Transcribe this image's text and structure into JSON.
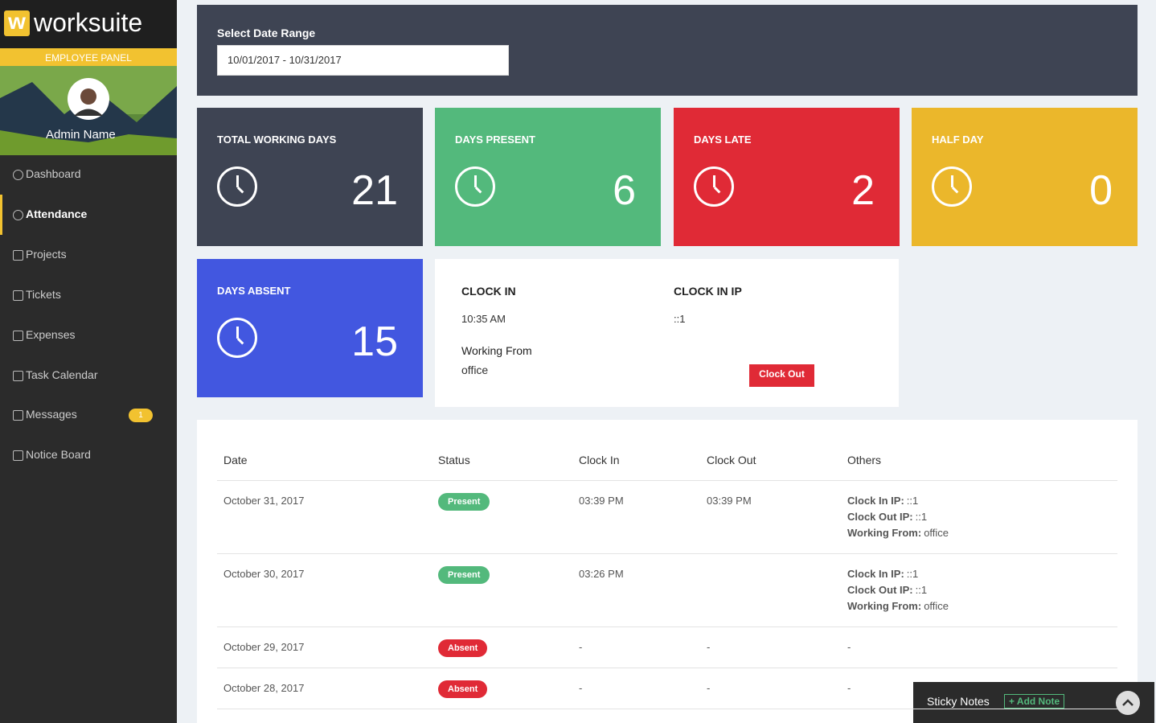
{
  "brand": {
    "logo_letter": "w",
    "name": "worksuite",
    "panel_label": "EMPLOYEE PANEL",
    "user_name": "Admin Name"
  },
  "nav": [
    {
      "label": "Dashboard"
    },
    {
      "label": "Attendance",
      "active": true
    },
    {
      "label": "Projects"
    },
    {
      "label": "Tickets"
    },
    {
      "label": "Expenses"
    },
    {
      "label": "Task Calendar"
    },
    {
      "label": "Messages",
      "badge": "1"
    },
    {
      "label": "Notice Board"
    }
  ],
  "date_range": {
    "label": "Select Date Range",
    "value": "10/01/2017 - 10/31/2017"
  },
  "stats": [
    {
      "label": "TOTAL WORKING DAYS",
      "value": 21,
      "color": "#3e4453"
    },
    {
      "label": "DAYS PRESENT",
      "value": 6,
      "color": "#53b97c"
    },
    {
      "label": "DAYS LATE",
      "value": 2,
      "color": "#e02a36"
    },
    {
      "label": "HALF DAY",
      "value": 0,
      "color": "#ebb72b"
    },
    {
      "label": "DAYS ABSENT",
      "value": 15,
      "color": "#4257e0"
    }
  ],
  "clock": {
    "clock_in_label": "CLOCK IN",
    "clock_in": "10:35 AM",
    "ip_label": "CLOCK IN IP",
    "ip": "::1",
    "working_from_label": "Working From",
    "working_from": "office",
    "button": "Clock Out"
  },
  "table": {
    "headers": [
      "Date",
      "Status",
      "Clock In",
      "Clock Out",
      "Others"
    ],
    "rows": [
      {
        "date": "October 31, 2017",
        "status": "Present",
        "clock_in": "03:39 PM",
        "clock_out": "03:39 PM",
        "others": [
          {
            "label": "Clock In IP:",
            "value": "::1"
          },
          {
            "label": "Clock Out IP:",
            "value": "::1"
          },
          {
            "label": "Working From:",
            "value": "office"
          }
        ]
      },
      {
        "date": "October 30, 2017",
        "status": "Present",
        "clock_in": "03:26 PM",
        "clock_out": null,
        "others": [
          {
            "label": "Clock In IP:",
            "value": "::1"
          },
          {
            "label": "Clock Out IP:",
            "value": "::1"
          },
          {
            "label": "Working From:",
            "value": "office"
          }
        ]
      },
      {
        "date": "October 29, 2017",
        "status": "Absent",
        "clock_in": "-",
        "clock_out": "-",
        "others": "-"
      },
      {
        "date": "October 28, 2017",
        "status": "Absent",
        "clock_in": "-",
        "clock_out": "-",
        "others": "-"
      }
    ]
  },
  "sticky": {
    "title": "Sticky Notes",
    "button": "+ Add Note"
  }
}
